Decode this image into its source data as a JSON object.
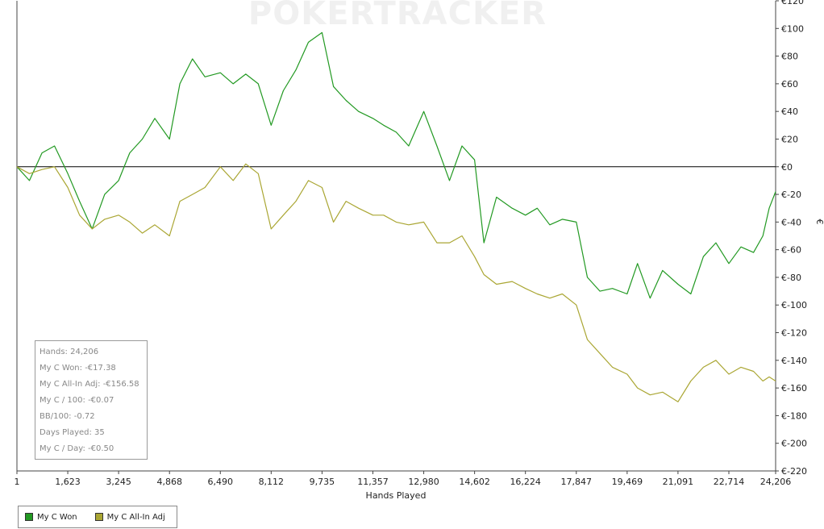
{
  "watermark": "POKERTRACKER",
  "chart_data": {
    "type": "line",
    "xlabel": "Hands Played",
    "ylabel": "€",
    "xlim": [
      1,
      24206
    ],
    "ylim": [
      -220,
      120
    ],
    "x_ticks": [
      "1",
      "1,623",
      "3,245",
      "4,868",
      "6,490",
      "8,112",
      "9,735",
      "11,357",
      "12,980",
      "14,602",
      "16,224",
      "17,847",
      "19,469",
      "21,091",
      "22,714",
      "24,206"
    ],
    "x_tick_values": [
      1,
      1623,
      3245,
      4868,
      6490,
      8112,
      9735,
      11357,
      12980,
      14602,
      16224,
      17847,
      19469,
      21091,
      22714,
      24206
    ],
    "y_tick_values": [
      120,
      100,
      80,
      60,
      40,
      20,
      0,
      -20,
      -40,
      -60,
      -80,
      -100,
      -120,
      -140,
      -160,
      -180,
      -200,
      -220
    ],
    "y_ticks": [
      "€120",
      "€100",
      "€80",
      "€60",
      "€40",
      "€20",
      "€0",
      "€-20",
      "€-40",
      "€-60",
      "€-80",
      "€-100",
      "€-120",
      "€-140",
      "€-160",
      "€-180",
      "€-200",
      "€-220"
    ],
    "grid": false,
    "legend_position": "bottom-left",
    "series": [
      {
        "name": "My C Won",
        "color": "#229922",
        "x": [
          1,
          400,
          800,
          1200,
          1623,
          2000,
          2400,
          2800,
          3245,
          3600,
          4000,
          4400,
          4868,
          5200,
          5600,
          6000,
          6490,
          6900,
          7300,
          7700,
          8112,
          8500,
          8900,
          9300,
          9735,
          10100,
          10500,
          10900,
          11357,
          11700,
          12100,
          12500,
          12980,
          13400,
          13800,
          14200,
          14602,
          14900,
          15300,
          15800,
          16224,
          16600,
          17000,
          17400,
          17847,
          18200,
          18600,
          19000,
          19469,
          19800,
          20200,
          20600,
          21091,
          21500,
          21900,
          22300,
          22714,
          23100,
          23500,
          23800,
          24000,
          24206
        ],
        "values": [
          0,
          -10,
          10,
          15,
          -5,
          -25,
          -45,
          -20,
          -10,
          10,
          20,
          35,
          20,
          60,
          78,
          65,
          68,
          60,
          67,
          60,
          30,
          55,
          70,
          90,
          97,
          58,
          48,
          40,
          35,
          30,
          25,
          15,
          40,
          15,
          -10,
          15,
          5,
          -55,
          -22,
          -30,
          -35,
          -30,
          -42,
          -38,
          -40,
          -80,
          -90,
          -88,
          -92,
          -70,
          -95,
          -75,
          -85,
          -92,
          -65,
          -55,
          -70,
          -58,
          -62,
          -50,
          -30,
          -18
        ]
      },
      {
        "name": "My C All-In Adj",
        "color": "#aaa633",
        "x": [
          1,
          400,
          800,
          1200,
          1623,
          2000,
          2400,
          2800,
          3245,
          3600,
          4000,
          4400,
          4868,
          5200,
          5600,
          6000,
          6490,
          6900,
          7300,
          7700,
          8112,
          8500,
          8900,
          9300,
          9735,
          10100,
          10500,
          10900,
          11357,
          11700,
          12100,
          12500,
          12980,
          13400,
          13800,
          14200,
          14602,
          14900,
          15300,
          15800,
          16224,
          16600,
          17000,
          17400,
          17847,
          18200,
          18600,
          19000,
          19469,
          19800,
          20200,
          20600,
          21091,
          21500,
          21900,
          22300,
          22714,
          23100,
          23500,
          23800,
          24000,
          24206
        ],
        "values": [
          0,
          -5,
          -2,
          0,
          -15,
          -35,
          -45,
          -38,
          -35,
          -40,
          -48,
          -42,
          -50,
          -25,
          -20,
          -15,
          0,
          -10,
          2,
          -5,
          -45,
          -35,
          -25,
          -10,
          -15,
          -40,
          -25,
          -30,
          -35,
          -35,
          -40,
          -42,
          -40,
          -55,
          -55,
          -50,
          -65,
          -78,
          -85,
          -83,
          -88,
          -92,
          -95,
          -92,
          -100,
          -125,
          -135,
          -145,
          -150,
          -160,
          -165,
          -163,
          -170,
          -155,
          -145,
          -140,
          -150,
          -145,
          -148,
          -155,
          -152,
          -155
        ]
      }
    ]
  },
  "stats": {
    "hands": "Hands: 24,206",
    "won": "My C Won: -€17.38",
    "all_in_adj": "My C All-In Adj: -€156.58",
    "per_100": "My C / 100: -€0.07",
    "bb_100": "BB/100: -0.72",
    "days_played": "Days Played: 35",
    "per_day": "My C / Day: -€0.50"
  },
  "legend": {
    "items": [
      {
        "label": "My C Won",
        "color": "#229922"
      },
      {
        "label": "My C All-In Adj",
        "color": "#aaa633"
      }
    ]
  }
}
